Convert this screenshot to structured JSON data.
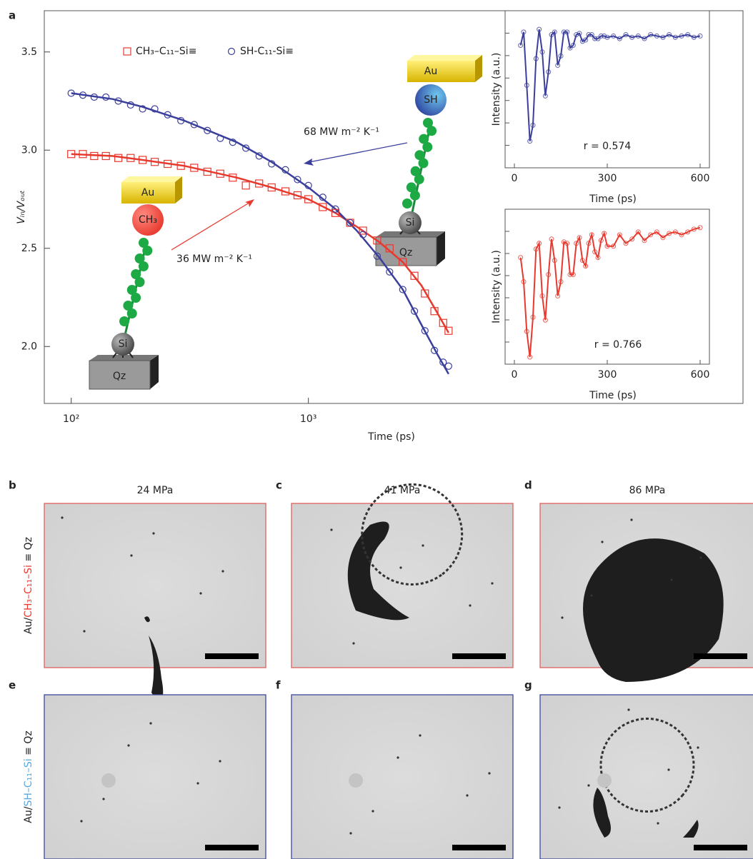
{
  "panel_label": "a",
  "chart_data": [
    {
      "type": "scatter",
      "x_label": "Time (ps)",
      "y_label": "Vᵢₙ/Vₒᵤₜ",
      "xscale": "log",
      "xlim": [
        77,
        68000
      ],
      "ylim": [
        1.71,
        3.71
      ],
      "xticks": [
        {
          "value": 100,
          "label": "10²"
        },
        {
          "value": 1000,
          "label": "10³"
        }
      ],
      "yticks": [
        {
          "value": 2,
          "label": "2.0"
        },
        2.5,
        {
          "value": 3,
          "label": "3.0"
        },
        3.5
      ],
      "series": [
        {
          "name": "CH₃–C₁₁–Si≡",
          "color": "#e8392f",
          "marker": "square",
          "x": [
            100,
            112,
            125,
            140,
            158,
            178,
            200,
            225,
            255,
            290,
            330,
            375,
            425,
            480,
            545,
            620,
            700,
            800,
            900,
            1000,
            1150,
            1300,
            1500,
            1700,
            1950,
            2200,
            2500,
            2800,
            3100,
            3400,
            3700,
            3900
          ],
          "values": [
            2.98,
            2.98,
            2.97,
            2.97,
            2.96,
            2.96,
            2.95,
            2.94,
            2.93,
            2.92,
            2.91,
            2.89,
            2.88,
            2.86,
            2.82,
            2.83,
            2.81,
            2.79,
            2.77,
            2.75,
            2.71,
            2.68,
            2.63,
            2.59,
            2.54,
            2.5,
            2.43,
            2.36,
            2.27,
            2.18,
            2.12,
            2.08
          ]
        },
        {
          "name": "SH-C₁₁-Si≡",
          "color": "#3b3f9c",
          "marker": "circle",
          "x": [
            100,
            112,
            125,
            140,
            158,
            178,
            200,
            225,
            255,
            290,
            330,
            375,
            425,
            480,
            545,
            620,
            700,
            800,
            900,
            1000,
            1150,
            1300,
            1500,
            1700,
            1950,
            2200,
            2500,
            2800,
            3100,
            3400,
            3700,
            3900
          ],
          "values": [
            3.29,
            3.28,
            3.27,
            3.27,
            3.25,
            3.23,
            3.21,
            3.21,
            3.18,
            3.15,
            3.13,
            3.1,
            3.06,
            3.04,
            3.01,
            2.97,
            2.93,
            2.9,
            2.85,
            2.82,
            2.76,
            2.7,
            2.63,
            2.57,
            2.46,
            2.38,
            2.29,
            2.18,
            2.08,
            1.98,
            1.92,
            1.9
          ]
        }
      ],
      "fits": [
        {
          "color": "#e8392f",
          "x": [
            100,
            150,
            200,
            300,
            500,
            700,
            1000,
            1300,
            1600,
            2000,
            2500,
            3000,
            3500,
            3900
          ],
          "values": [
            2.98,
            2.97,
            2.95,
            2.92,
            2.86,
            2.81,
            2.75,
            2.68,
            2.61,
            2.53,
            2.43,
            2.31,
            2.17,
            2.07
          ]
        },
        {
          "color": "#3b3f9c",
          "x": [
            100,
            150,
            200,
            300,
            500,
            700,
            1000,
            1300,
            1600,
            2000,
            2500,
            3000,
            3500,
            3900
          ],
          "values": [
            3.29,
            3.26,
            3.22,
            3.15,
            3.04,
            2.94,
            2.81,
            2.7,
            2.59,
            2.45,
            2.29,
            2.11,
            1.96,
            1.86
          ]
        }
      ],
      "annotations": [
        {
          "text": "68 MW m⁻² K⁻¹",
          "color": "#3b3f9c"
        },
        {
          "text": "36 MW m⁻² K⁻¹",
          "color": "#e8392f"
        }
      ]
    },
    {
      "type": "line",
      "x_label": "Time (ps)",
      "y_label": "Intensity (a.u.)",
      "annotation": "r = 0.574",
      "color": "#3b3f9c",
      "xlim": [
        -30,
        630
      ],
      "ylim": [
        -0.12,
        1.06
      ],
      "xticks": [
        0,
        300,
        600
      ],
      "x": [
        20,
        30,
        40,
        50,
        60,
        70,
        80,
        90,
        100,
        110,
        120,
        130,
        140,
        150,
        160,
        170,
        180,
        190,
        200,
        210,
        220,
        230,
        240,
        250,
        260,
        270,
        280,
        290,
        300,
        320,
        340,
        360,
        380,
        400,
        420,
        440,
        460,
        480,
        500,
        520,
        540,
        560,
        580,
        600
      ],
      "values": [
        0.8,
        0.9,
        0.5,
        0.08,
        0.2,
        0.7,
        0.92,
        0.75,
        0.42,
        0.6,
        0.88,
        0.9,
        0.65,
        0.72,
        0.9,
        0.9,
        0.78,
        0.8,
        0.88,
        0.89,
        0.83,
        0.84,
        0.88,
        0.88,
        0.85,
        0.85,
        0.87,
        0.87,
        0.86,
        0.87,
        0.85,
        0.88,
        0.86,
        0.87,
        0.85,
        0.88,
        0.87,
        0.86,
        0.88,
        0.86,
        0.87,
        0.88,
        0.86,
        0.87
      ]
    },
    {
      "type": "line",
      "x_label": "Time (ps)",
      "y_label": "Intensity (a.u.)",
      "annotation": "r = 0.766",
      "color": "#e8392f",
      "xlim": [
        -30,
        630
      ],
      "ylim": [
        -0.03,
        1.06
      ],
      "xticks": [
        0,
        300,
        600
      ],
      "x": [
        20,
        30,
        40,
        50,
        60,
        70,
        80,
        90,
        100,
        110,
        120,
        130,
        140,
        150,
        160,
        170,
        180,
        190,
        200,
        210,
        220,
        230,
        240,
        250,
        260,
        270,
        280,
        290,
        300,
        320,
        340,
        360,
        380,
        400,
        420,
        440,
        460,
        480,
        500,
        520,
        540,
        560,
        580,
        600
      ],
      "values": [
        0.72,
        0.55,
        0.2,
        0.02,
        0.3,
        0.78,
        0.82,
        0.45,
        0.28,
        0.6,
        0.85,
        0.7,
        0.45,
        0.55,
        0.83,
        0.82,
        0.6,
        0.6,
        0.82,
        0.86,
        0.7,
        0.66,
        0.82,
        0.88,
        0.76,
        0.72,
        0.84,
        0.89,
        0.8,
        0.8,
        0.88,
        0.82,
        0.85,
        0.9,
        0.84,
        0.88,
        0.9,
        0.86,
        0.89,
        0.9,
        0.88,
        0.9,
        0.92,
        0.93
      ]
    }
  ],
  "diagrams": [
    {
      "plate": "Au",
      "head": "CH₃",
      "anchor": "Si",
      "base": "Qz"
    },
    {
      "plate": "Au",
      "head": "SH",
      "anchor": "Si",
      "base": "Qz"
    }
  ],
  "rows": [
    {
      "label_parts": [
        "Au/",
        "CH₃–C₁₁–Si",
        " ≡ Qz"
      ]
    },
    {
      "label_parts": [
        "Au/",
        "SH–C₁₁–Si",
        " ≡ Qz"
      ]
    }
  ],
  "panels": [
    {
      "letter": "b",
      "pressure": "24 MPa"
    },
    {
      "letter": "c",
      "pressure": "41 MPa"
    },
    {
      "letter": "d",
      "pressure": "86 MPa"
    },
    {
      "letter": "e"
    },
    {
      "letter": "f"
    },
    {
      "letter": "g"
    }
  ]
}
